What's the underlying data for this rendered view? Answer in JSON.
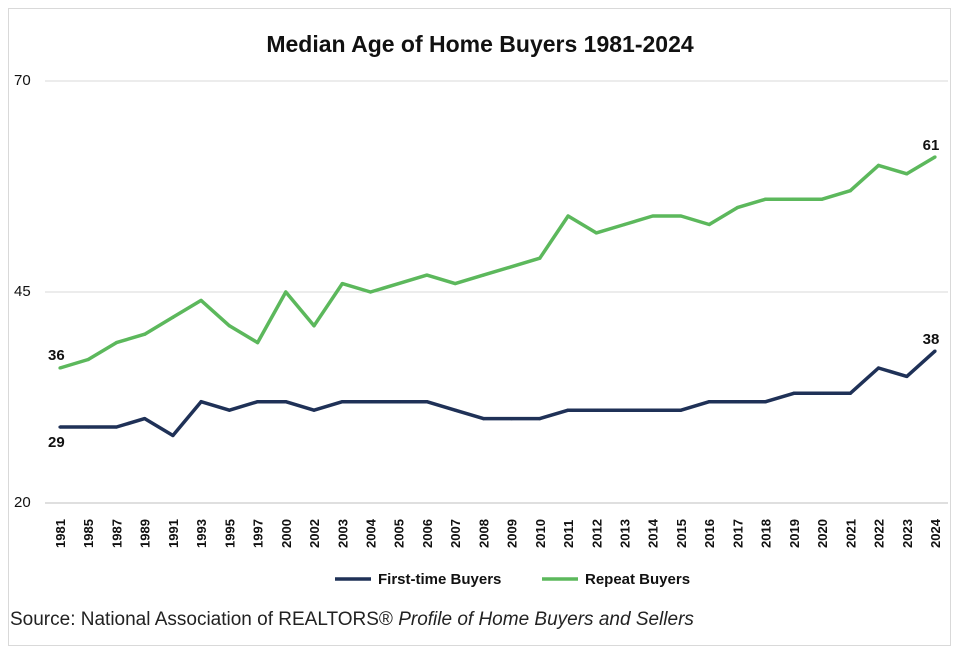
{
  "chart_data": {
    "type": "line",
    "title": "Median Age of Home Buyers 1981-2024",
    "xlabel": "",
    "ylabel": "",
    "ylim": [
      20,
      70
    ],
    "yticks": [
      20,
      45,
      70
    ],
    "grid": true,
    "legend_position": "bottom",
    "categories": [
      "1981",
      "1985",
      "1987",
      "1989",
      "1991",
      "1993",
      "1995",
      "1997",
      "2000",
      "2002",
      "2003",
      "2004",
      "2005",
      "2006",
      "2007",
      "2008",
      "2009",
      "2010",
      "2011",
      "2012",
      "2013",
      "2014",
      "2015",
      "2016",
      "2017",
      "2018",
      "2019",
      "2020",
      "2021",
      "2022",
      "2023",
      "2024"
    ],
    "series": [
      {
        "name": "First-time Buyers",
        "color": "#1f3157",
        "values": [
          29,
          29,
          29,
          30,
          28,
          32,
          31,
          32,
          32,
          31,
          32,
          32,
          32,
          32,
          31,
          30,
          30,
          30,
          31,
          31,
          31,
          31,
          31,
          32,
          32,
          32,
          33,
          33,
          33,
          36,
          35,
          38
        ],
        "labels": [
          {
            "index": 0,
            "text": "29"
          },
          {
            "index": 31,
            "text": "38"
          }
        ]
      },
      {
        "name": "Repeat Buyers",
        "color": "#5cb85c",
        "values": [
          36,
          37,
          39,
          40,
          42,
          44,
          41,
          39,
          45,
          41,
          46,
          45,
          46,
          47,
          46,
          47,
          48,
          49,
          54,
          52,
          53,
          54,
          54,
          53,
          55,
          56,
          56,
          56,
          57,
          60,
          59,
          61
        ],
        "labels": [
          {
            "index": 0,
            "text": "36"
          },
          {
            "index": 31,
            "text": "61"
          }
        ]
      }
    ]
  },
  "source": {
    "prefix": "Source: National Association of REALTORS® ",
    "italic": "Profile of Home Buyers and Sellers"
  }
}
